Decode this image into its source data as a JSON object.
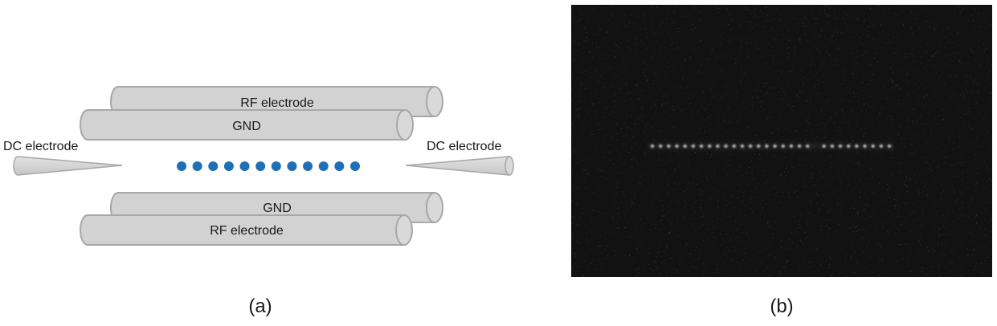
{
  "panel_a": {
    "rod_labels": {
      "top_back": "RF electrode",
      "top_front": "GND",
      "bottom_back": "GND",
      "bottom_front": "RF electrode"
    },
    "dc_left_label": "DC electrode",
    "dc_right_label": "DC electrode",
    "ion_count": 12,
    "ion_color": "#1f6fb8",
    "rod_fill": "#d2d2d2",
    "rod_stroke": "#a7a7a7"
  },
  "panel_b": {
    "background": "#121212",
    "ion_count": 30
  },
  "captions": {
    "a": "(a)",
    "b": "(b)"
  }
}
